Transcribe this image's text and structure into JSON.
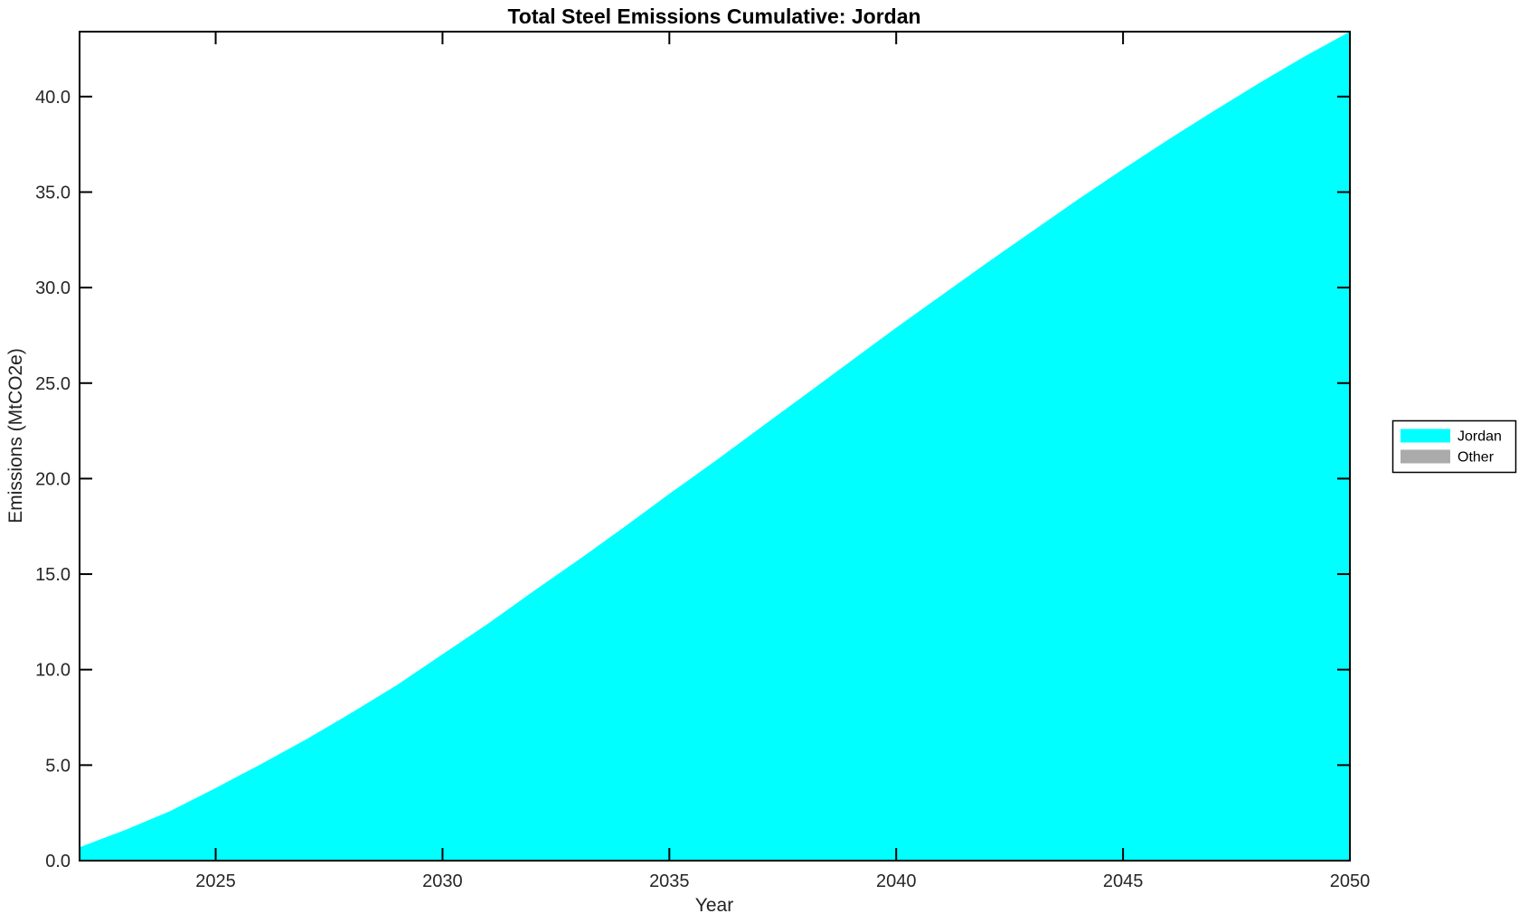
{
  "chart_data": {
    "type": "area",
    "title": "Total Steel Emissions Cumulative: Jordan",
    "xlabel": "Year",
    "ylabel": "Emissions (MtCO2e)",
    "x_range": [
      2022,
      2050
    ],
    "y_range": [
      0,
      43.4
    ],
    "x_ticks": [
      2025,
      2030,
      2035,
      2040,
      2045,
      2050
    ],
    "x_tick_labels": [
      "2025",
      "2030",
      "2035",
      "2040",
      "2045",
      "2050"
    ],
    "y_ticks": [
      0,
      5,
      10,
      15,
      20,
      25,
      30,
      35,
      40
    ],
    "y_tick_labels": [
      "0.0",
      "5.0",
      "10.0",
      "15.0",
      "20.0",
      "25.0",
      "30.0",
      "35.0",
      "40.0"
    ],
    "grid": false,
    "legend_position": "outside-right",
    "x": [
      2022,
      2023,
      2024,
      2025,
      2026,
      2027,
      2028,
      2029,
      2030,
      2031,
      2032,
      2033,
      2034,
      2035,
      2036,
      2037,
      2038,
      2039,
      2040,
      2041,
      2042,
      2043,
      2044,
      2045,
      2046,
      2047,
      2048,
      2049,
      2050
    ],
    "series": [
      {
        "name": "Jordan",
        "color": "#00FFFF",
        "values": [
          0.7,
          1.6,
          2.6,
          3.8,
          5.05,
          6.35,
          7.75,
          9.2,
          10.8,
          12.4,
          14.1,
          15.75,
          17.45,
          19.2,
          20.9,
          22.65,
          24.4,
          26.15,
          27.9,
          29.6,
          31.3,
          32.95,
          34.6,
          36.2,
          37.75,
          39.25,
          40.7,
          42.1,
          43.4
        ]
      },
      {
        "name": "Other",
        "color": "#ABABAB",
        "values": [
          0,
          0,
          0,
          0,
          0,
          0,
          0,
          0,
          0,
          0,
          0,
          0,
          0,
          0,
          0,
          0,
          0,
          0,
          0,
          0,
          0,
          0,
          0,
          0,
          0,
          0,
          0,
          0,
          0
        ]
      }
    ]
  },
  "colors": {
    "axis": "#000000",
    "background": "#FFFFFF",
    "jordan_fill": "#00FFFF",
    "other_fill": "#ABABAB"
  }
}
